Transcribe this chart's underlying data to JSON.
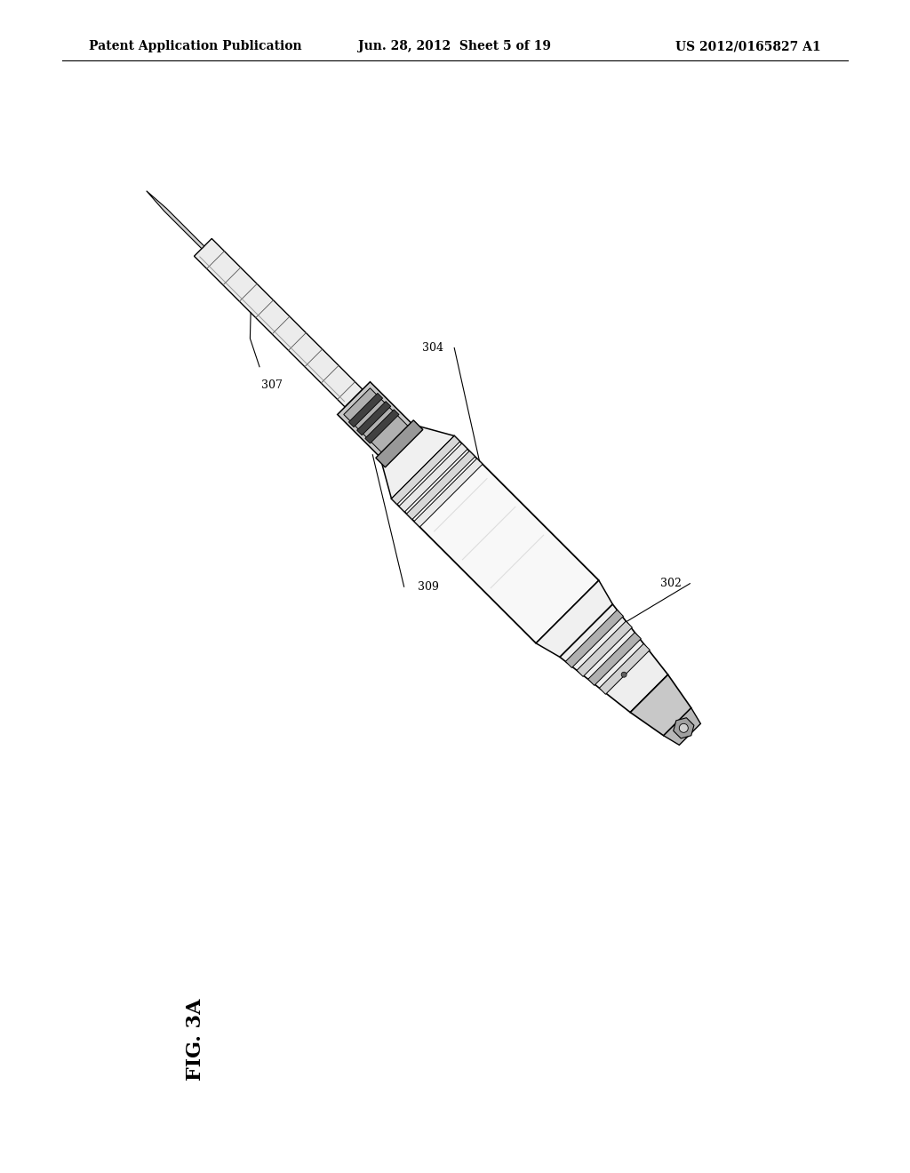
{
  "bg_color": "#ffffff",
  "header_left": "Patent Application Publication",
  "header_center": "Jun. 28, 2012  Sheet 5 of 19",
  "header_right": "US 2012/0165827 A1",
  "fig_label": "FIG. 3A",
  "ref_labels": [
    "307",
    "309",
    "304",
    "302"
  ],
  "header_fontsize": 10,
  "fig_fontsize": 16
}
